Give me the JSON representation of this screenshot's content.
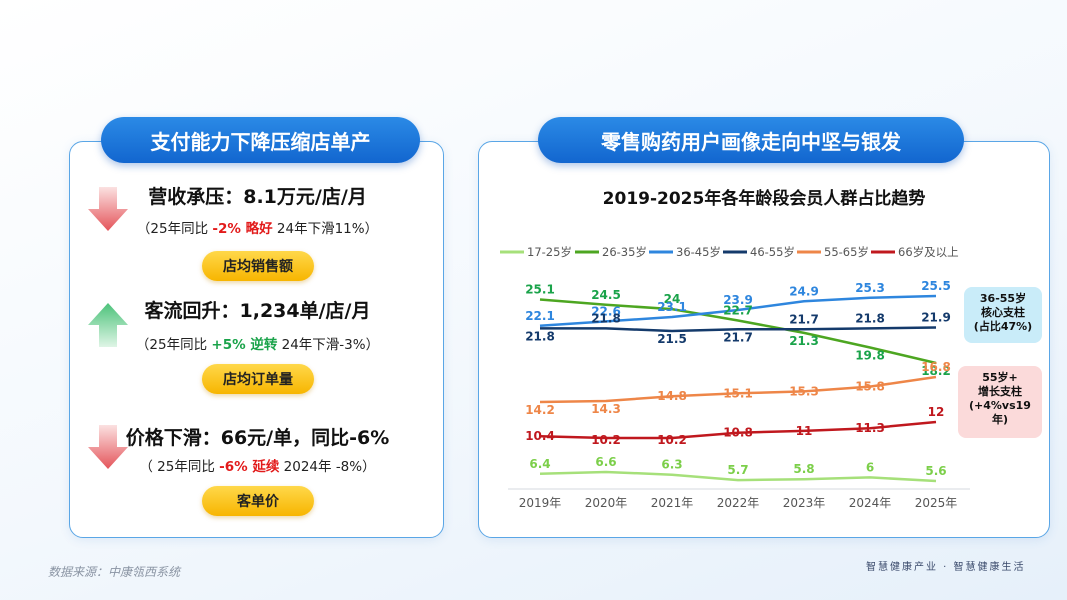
{
  "left": {
    "title": "支付能力下降压缩店单产",
    "metrics": [
      {
        "head": "营收承压：8.1万元/店/月",
        "sub_pre": "（25年同比 ",
        "sub_hl": "-2% 略好",
        "sub_post": " 24年下滑11%）",
        "tag": "店均销售额",
        "direction": "down"
      },
      {
        "head": "客流回升：1,234单/店/月",
        "sub_pre": "（25年同比 ",
        "sub_hl": "+5% 逆转",
        "sub_post": " 24年下滑-3%）",
        "tag": "店均订单量",
        "direction": "up"
      },
      {
        "head": "价格下滑：66元/单，同比-6%",
        "sub_pre": "（ 25年同比 ",
        "sub_hl": "-6% 延续",
        "sub_post": " 2024年 -8%）",
        "tag": "客单价",
        "direction": "down"
      }
    ]
  },
  "right": {
    "title": "零售购药用户画像走向中坚与银发",
    "callout_core": "36-55岁\n核心支柱\n(占比47%)",
    "callout_growth": "55岁+\n增长支柱\n(+4%vs19\n年)"
  },
  "footer": {
    "source": "数据来源：中康瓴西系统",
    "slogan": "智慧健康产业 · 智慧健康生活"
  },
  "colors": {
    "accent": "#1a73d9",
    "red": "#e21b1b",
    "green": "#1aa34a",
    "yellow": "#f7b500"
  },
  "chart_data": {
    "type": "line",
    "title": "2019-2025年各年龄段会员人群占比趋势",
    "categories": [
      "2019年",
      "2020年",
      "2021年",
      "2022年",
      "2023年",
      "2024年",
      "2025年"
    ],
    "ylim": [
      0,
      28
    ],
    "legend_position": "top",
    "series": [
      {
        "name": "17-25岁",
        "color": "#a6e07a",
        "values": [
          6.4,
          6.6,
          6.3,
          5.7,
          5.8,
          6.0,
          5.6
        ]
      },
      {
        "name": "26-35岁",
        "color": "#4da621",
        "values": [
          25.1,
          24.5,
          24,
          22.7,
          21.3,
          19.8,
          18.2
        ]
      },
      {
        "name": "36-45岁",
        "color": "#2e86de",
        "values": [
          22.1,
          22.6,
          23.1,
          23.9,
          24.9,
          25.3,
          25.5
        ]
      },
      {
        "name": "46-55岁",
        "color": "#143a6b",
        "values": [
          21.8,
          21.8,
          21.5,
          21.7,
          21.7,
          21.8,
          21.9
        ]
      },
      {
        "name": "55-65岁",
        "color": "#ee8648",
        "values": [
          14.2,
          14.3,
          14.8,
          15.1,
          15.3,
          15.8,
          16.8
        ]
      },
      {
        "name": "66岁及以上",
        "color": "#c0181e",
        "values": [
          10.4,
          10.2,
          10.2,
          10.8,
          11.0,
          11.3,
          12.0
        ]
      }
    ]
  }
}
